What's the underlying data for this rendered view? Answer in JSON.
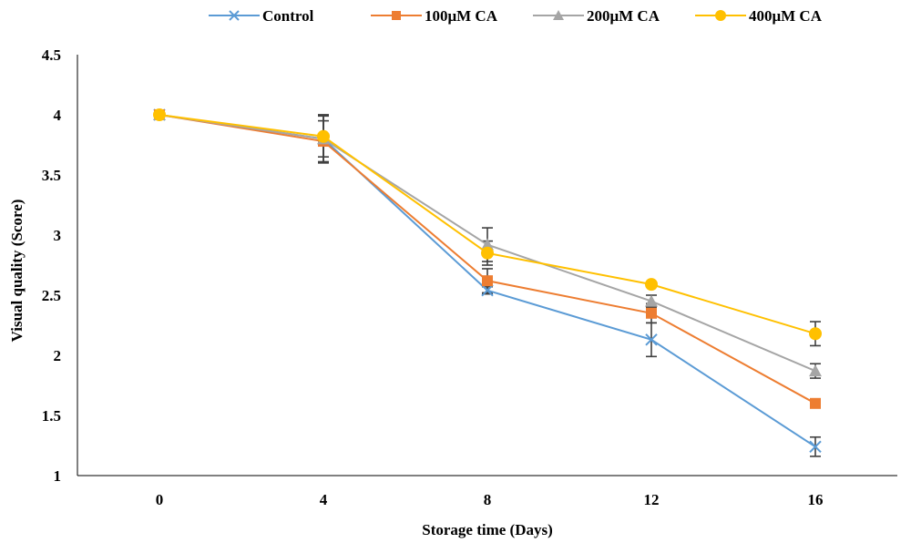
{
  "chart_data": {
    "type": "line",
    "xlabel": "Storage time (Days)",
    "ylabel": "Visual quality (Score)",
    "categories": [
      "0",
      "4",
      "8",
      "12",
      "16"
    ],
    "ylim": [
      1,
      4.5
    ],
    "yticks": [
      "1",
      "1.5",
      "2",
      "2.5",
      "3",
      "3.5",
      "4",
      "4.5"
    ],
    "grid": false,
    "legend_position": "top",
    "series": [
      {
        "name": "Control",
        "color": "#5B9BD5",
        "marker": "x",
        "values": [
          4.0,
          3.8,
          2.54,
          2.13,
          1.24
        ],
        "errors": [
          0.0,
          0.2,
          0.03,
          0.14,
          0.08
        ]
      },
      {
        "name": "100μM CA",
        "color": "#ED7D31",
        "marker": "square",
        "values": [
          4.0,
          3.78,
          2.62,
          2.35,
          1.6
        ],
        "errors": [
          0.0,
          0.17,
          0.1,
          0.08,
          0.0
        ]
      },
      {
        "name": "200μM CA",
        "color": "#A5A5A5",
        "marker": "triangle",
        "values": [
          4.0,
          3.8,
          2.92,
          2.45,
          1.87
        ],
        "errors": [
          0.0,
          0.2,
          0.14,
          0.05,
          0.06
        ]
      },
      {
        "name": "400μM CA",
        "color": "#FFC000",
        "marker": "circle",
        "values": [
          4.0,
          3.82,
          2.85,
          2.59,
          2.18
        ],
        "errors": [
          0.0,
          0.17,
          0.1,
          0.02,
          0.1
        ]
      }
    ]
  }
}
